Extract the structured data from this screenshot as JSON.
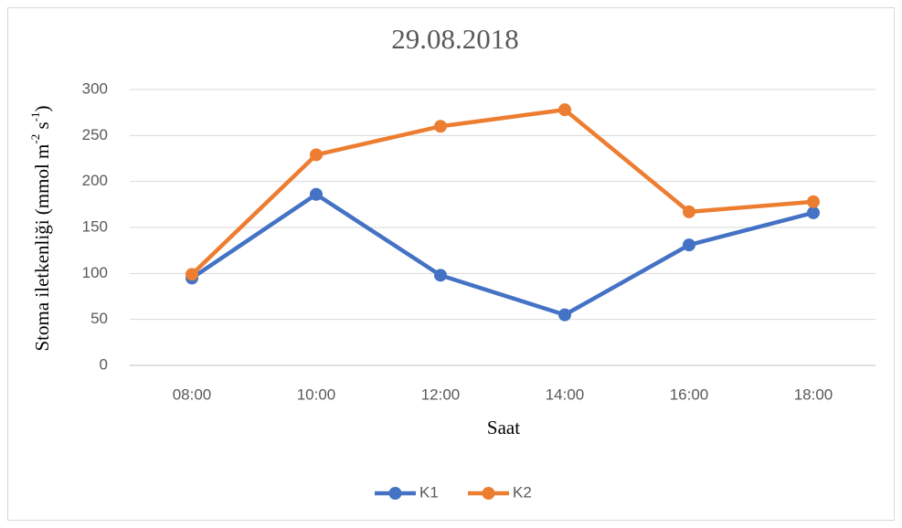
{
  "chart_data": {
    "type": "line",
    "title": "29.08.2018",
    "x_label": "Saat",
    "y_label": [
      "Stoma iletkenliği (mmol m",
      "-2",
      " s",
      "-1",
      ")"
    ],
    "categories": [
      "08:00",
      "10:00",
      "12:00",
      "14:00",
      "16:00",
      "18:00"
    ],
    "series": [
      {
        "name": "K1",
        "color": "#4472c4",
        "values": [
          95,
          186,
          98,
          55,
          131,
          166
        ]
      },
      {
        "name": "K2",
        "color": "#ed7d31",
        "values": [
          99,
          229,
          260,
          278,
          167,
          178
        ]
      }
    ],
    "ylim": [
      0,
      300
    ],
    "yticks": [
      0,
      50,
      100,
      150,
      200,
      250,
      300
    ],
    "grid": true,
    "legend": "bottom"
  }
}
